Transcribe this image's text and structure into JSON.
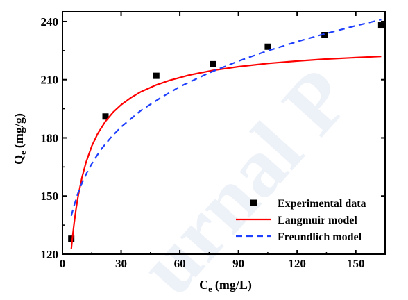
{
  "watermark_text": "urnal P",
  "chart_data": {
    "type": "scatter",
    "xlabel_main": "C",
    "xlabel_sub": "e",
    "xlabel_unit": " (mg/L)",
    "ylabel_main": "Q",
    "ylabel_sub": "e",
    "ylabel_unit": " (mg/g)",
    "xlim": [
      0,
      165
    ],
    "ylim": [
      120,
      245
    ],
    "xticks": [
      0,
      30,
      60,
      90,
      120,
      150
    ],
    "yticks": [
      120,
      150,
      180,
      210,
      240
    ],
    "xtick_labels": [
      "0",
      "30",
      "60",
      "90",
      "120",
      "150"
    ],
    "ytick_labels": [
      "120",
      "150",
      "180",
      "210",
      "240"
    ],
    "legend_position": "bottom-right",
    "series": [
      {
        "name": "Experimental data",
        "kind": "points",
        "color": "#000000",
        "x": [
          4.5,
          22,
          48,
          77,
          105,
          134,
          163
        ],
        "y": [
          128,
          191,
          212,
          218,
          227,
          233,
          238
        ]
      },
      {
        "name": "Langmuir model",
        "kind": "line",
        "color": "#ff0000",
        "x": [
          4.5,
          5,
          6,
          7,
          8,
          10,
          12,
          15,
          18,
          22,
          26,
          30,
          35,
          40,
          48,
          55,
          65,
          77,
          90,
          105,
          120,
          134,
          150,
          163
        ],
        "y": [
          122.6,
          127.6,
          136.3,
          143.6,
          149.8,
          159.7,
          167.2,
          175.8,
          182.1,
          188.5,
          193.3,
          197.0,
          200.7,
          203.7,
          207.3,
          209.7,
          212.4,
          214.8,
          216.7,
          218.4,
          219.6,
          220.6,
          221.4,
          222.0
        ]
      },
      {
        "name": "Freundlich model",
        "kind": "dashed-line",
        "color": "#1f3fff",
        "x": [
          4.5,
          6,
          8,
          10,
          13,
          16,
          20,
          25,
          30,
          40,
          50,
          60,
          75,
          90,
          105,
          120,
          134,
          150,
          163
        ],
        "y": [
          139.8,
          145.2,
          151.6,
          156.8,
          163.1,
          168.4,
          174.4,
          180.5,
          185.6,
          194.0,
          200.5,
          206.4,
          213.5,
          219.6,
          224.9,
          229.6,
          233.6,
          237.8,
          241.0
        ]
      }
    ]
  }
}
